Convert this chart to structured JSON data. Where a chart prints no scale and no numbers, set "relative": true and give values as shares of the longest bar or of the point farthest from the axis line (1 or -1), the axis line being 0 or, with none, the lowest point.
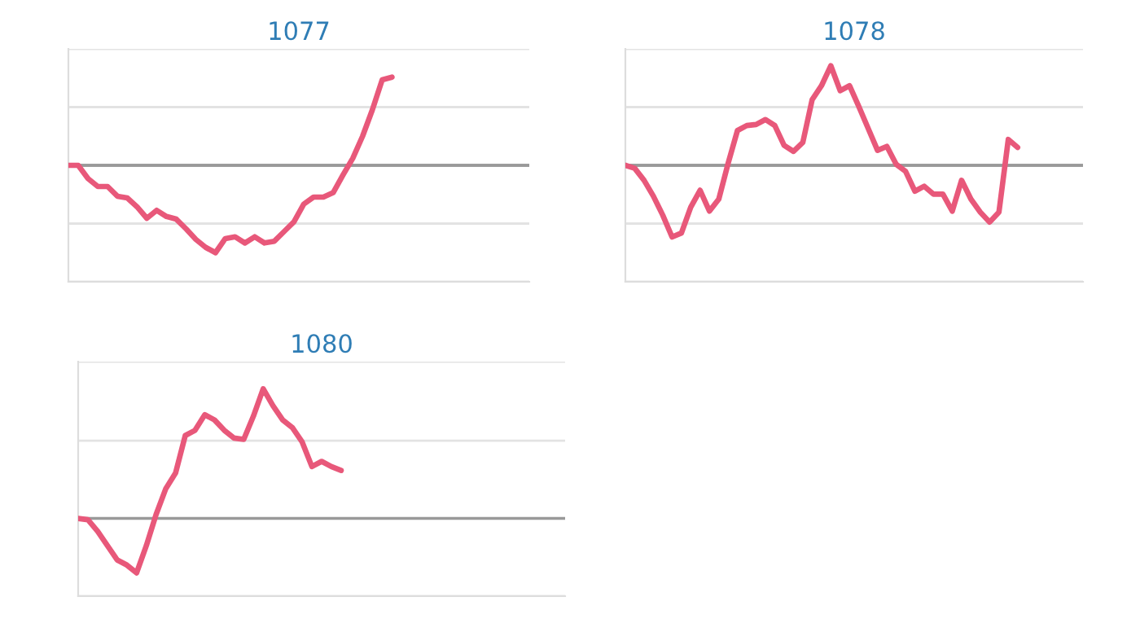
{
  "chart_data": [
    {
      "type": "line",
      "title": "1077",
      "relative": true,
      "ref_lines": [
        {
          "axis": "y",
          "value": 0.66,
          "color": "#e3e3e3"
        },
        {
          "axis": "y",
          "value": -0.66,
          "color": "#e3e3e3"
        }
      ],
      "categories": [
        null,
        null,
        null,
        null,
        null,
        null,
        null,
        null,
        null,
        null,
        null,
        null,
        null,
        null,
        null,
        null,
        null,
        null,
        null,
        null,
        null,
        null,
        null,
        null,
        null,
        null,
        null,
        null,
        null,
        null,
        null,
        null,
        null,
        null,
        null,
        null,
        null,
        null,
        null,
        null,
        null,
        null,
        null,
        null,
        null,
        null,
        null,
        null
      ],
      "series": [
        {
          "color": "#e8587a",
          "values": [
            0,
            0,
            -0.15,
            -0.24,
            -0.24,
            -0.35,
            -0.37,
            -0.47,
            -0.6,
            -0.51,
            -0.58,
            -0.61,
            -0.72,
            -0.84,
            -0.93,
            -0.99,
            -0.83,
            -0.81,
            -0.88,
            -0.81,
            -0.88,
            -0.86,
            -0.75,
            -0.64,
            -0.44,
            -0.36,
            -0.36,
            -0.31,
            -0.11,
            0.08,
            0.33,
            0.63,
            0.97,
            1,
            null,
            null,
            null,
            null,
            null,
            null,
            null,
            null,
            null,
            null,
            null,
            null,
            null,
            null
          ]
        }
      ]
    },
    {
      "type": "line",
      "title": "1078",
      "relative": true,
      "ref_lines": [
        {
          "axis": "y",
          "value": 0.585,
          "color": "#e3e3e3"
        },
        {
          "axis": "y",
          "value": -0.585,
          "color": "#e3e3e3"
        }
      ],
      "categories": [
        null,
        null,
        null,
        null,
        null,
        null,
        null,
        null,
        null,
        null,
        null,
        null,
        null,
        null,
        null,
        null,
        null,
        null,
        null,
        null,
        null,
        null,
        null,
        null,
        null,
        null,
        null,
        null,
        null,
        null,
        null,
        null,
        null,
        null,
        null,
        null,
        null,
        null,
        null,
        null,
        null,
        null,
        null,
        null,
        null,
        null,
        null,
        null,
        null,
        null
      ],
      "series": [
        {
          "color": "#e8587a",
          "values": [
            0,
            -0.03,
            -0.15,
            -0.31,
            -0.5,
            -0.72,
            -0.68,
            -0.42,
            -0.25,
            -0.46,
            -0.34,
            0.02,
            0.35,
            0.4,
            0.41,
            0.46,
            0.4,
            0.2,
            0.14,
            0.23,
            0.66,
            0.8,
            1,
            0.75,
            0.8,
            0.59,
            0.37,
            0.15,
            0.19,
            0.01,
            -0.06,
            -0.26,
            -0.21,
            -0.29,
            -0.29,
            -0.46,
            -0.15,
            -0.34,
            -0.47,
            -0.57,
            -0.47,
            0.26,
            0.18,
            null,
            null,
            null,
            null,
            null,
            null,
            null
          ]
        }
      ]
    },
    {
      "type": "line",
      "title": "1080",
      "relative": true,
      "ref_lines": [
        {
          "axis": "y",
          "value": 0.6,
          "color": "#e3e3e3"
        }
      ],
      "categories": [
        null,
        null,
        null,
        null,
        null,
        null,
        null,
        null,
        null,
        null,
        null,
        null,
        null,
        null,
        null,
        null,
        null,
        null,
        null,
        null,
        null,
        null,
        null,
        null,
        null,
        null,
        null,
        null,
        null,
        null,
        null,
        null,
        null,
        null,
        null,
        null,
        null,
        null,
        null,
        null,
        null,
        null,
        null,
        null,
        null,
        null,
        null,
        null,
        null,
        null,
        null
      ],
      "series": [
        {
          "color": "#e8587a",
          "values": [
            0,
            -0.01,
            -0.1,
            -0.21,
            -0.32,
            -0.36,
            -0.42,
            -0.21,
            0.03,
            0.23,
            0.35,
            0.64,
            0.68,
            0.8,
            0.76,
            0.68,
            0.62,
            0.61,
            0.79,
            1,
            0.87,
            0.76,
            0.7,
            0.59,
            0.4,
            0.44,
            0.4,
            0.37,
            null,
            null,
            null,
            null,
            null,
            null,
            null,
            null,
            null,
            null,
            null,
            null,
            null,
            null,
            null,
            null,
            null,
            null,
            null,
            null,
            null,
            null,
            null
          ]
        }
      ]
    }
  ]
}
